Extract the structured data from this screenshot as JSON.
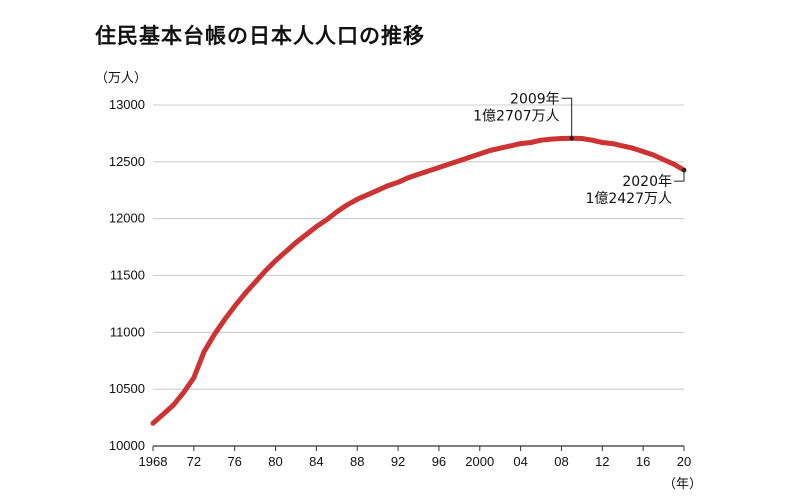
{
  "page": {
    "title": "住民基本台帳の日本人人口の推移"
  },
  "chart_data": {
    "type": "line",
    "title": "住民基本台帳の日本人人口の推移",
    "y_unit": "（万人）",
    "x_unit": "（年）",
    "ylim": [
      10000,
      13000
    ],
    "xlim": [
      1968,
      2020
    ],
    "y_ticks": [
      "10000",
      "10500",
      "11000",
      "11500",
      "12000",
      "12500",
      "13000"
    ],
    "x_ticks": [
      "1968",
      "72",
      "76",
      "80",
      "84",
      "88",
      "92",
      "96",
      "2000",
      "04",
      "08",
      "12",
      "16",
      "20"
    ],
    "grid": true,
    "color": "#cc3333",
    "series": [
      {
        "x": [
          1968,
          1969,
          1970,
          1971,
          1972,
          1973,
          1974,
          1975,
          1976,
          1977,
          1978,
          1979,
          1980,
          1981,
          1982,
          1983,
          1984,
          1985,
          1986,
          1987,
          1988,
          1989,
          1990,
          1991,
          1992,
          1993,
          1994,
          1995,
          1996,
          1997,
          1998,
          1999,
          2000,
          2001,
          2002,
          2003,
          2004,
          2005,
          2006,
          2007,
          2008,
          2009,
          2010,
          2011,
          2012,
          2013,
          2014,
          2015,
          2016,
          2017,
          2018,
          2019,
          2020
        ],
        "y": [
          10200,
          10280,
          10360,
          10470,
          10600,
          10830,
          10980,
          11110,
          11230,
          11340,
          11440,
          11540,
          11630,
          11710,
          11790,
          11860,
          11930,
          11990,
          12060,
          12120,
          12170,
          12210,
          12250,
          12290,
          12320,
          12360,
          12390,
          12420,
          12450,
          12480,
          12510,
          12540,
          12570,
          12600,
          12620,
          12640,
          12660,
          12670,
          12690,
          12700,
          12705,
          12707,
          12705,
          12690,
          12670,
          12660,
          12640,
          12620,
          12590,
          12560,
          12520,
          12480,
          12427
        ]
      }
    ],
    "annotations": [
      {
        "line1": "2009年",
        "line2": "1億2707万人",
        "x": 2009,
        "y": 12707
      },
      {
        "line1": "2020年",
        "line2": "1億2427万人",
        "x": 2020,
        "y": 12427
      }
    ]
  }
}
